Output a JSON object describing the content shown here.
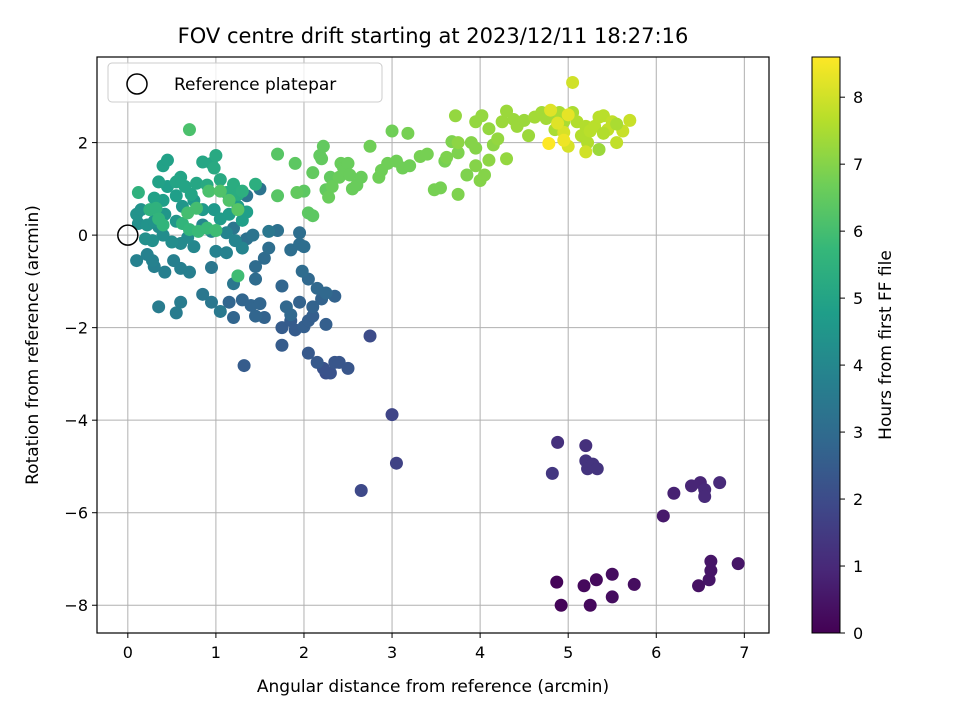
{
  "chart_data": {
    "type": "scatter",
    "title": "FOV centre drift starting at 2023/12/11 18:27:16",
    "xlabel": "Angular distance from reference (arcmin)",
    "ylabel": "Rotation from reference (arcmin)",
    "xlim": [
      -0.35,
      7.28
    ],
    "ylim": [
      -8.6,
      3.85
    ],
    "xticks": [
      0,
      1,
      2,
      3,
      4,
      5,
      6,
      7
    ],
    "yticks": [
      -8,
      -6,
      -4,
      -2,
      0,
      2
    ],
    "grid": true,
    "legend": {
      "placement": "top-left",
      "entries": [
        "Reference platepar"
      ]
    },
    "reference_point": {
      "x": 0,
      "y": 0
    },
    "colorbar": {
      "label": "Hours from first FF file",
      "colormap": "viridis",
      "range": [
        0,
        8.6
      ],
      "ticks": [
        0,
        1,
        2,
        3,
        4,
        5,
        6,
        7,
        8
      ]
    },
    "colors": {
      "viridis_stops": [
        "#440154",
        "#482878",
        "#3e4989",
        "#31688e",
        "#26828e",
        "#1f9e89",
        "#35b779",
        "#6ece58",
        "#b5de2b",
        "#fde725"
      ]
    },
    "points": [
      [
        4.92,
        -8.0,
        0.1
      ],
      [
        5.25,
        -8.0,
        0.2
      ],
      [
        5.5,
        -7.82,
        0.3
      ],
      [
        5.18,
        -7.58,
        0.2
      ],
      [
        5.32,
        -7.45,
        0.2
      ],
      [
        4.87,
        -7.5,
        0.1
      ],
      [
        5.5,
        -7.33,
        0.3
      ],
      [
        5.75,
        -7.55,
        0.3
      ],
      [
        6.48,
        -7.58,
        0.4
      ],
      [
        6.6,
        -7.45,
        0.5
      ],
      [
        6.62,
        -7.25,
        0.5
      ],
      [
        6.62,
        -7.05,
        0.5
      ],
      [
        6.93,
        -7.1,
        0.5
      ],
      [
        6.08,
        -6.07,
        0.6
      ],
      [
        6.2,
        -5.58,
        0.8
      ],
      [
        6.4,
        -5.42,
        0.9
      ],
      [
        6.5,
        -5.35,
        0.9
      ],
      [
        6.55,
        -5.5,
        1.0
      ],
      [
        6.55,
        -5.65,
        1.0
      ],
      [
        6.72,
        -5.35,
        1.0
      ],
      [
        4.88,
        -4.48,
        1.2
      ],
      [
        5.2,
        -4.55,
        1.2
      ],
      [
        5.2,
        -4.88,
        1.3
      ],
      [
        5.22,
        -5.05,
        1.3
      ],
      [
        5.28,
        -4.95,
        1.3
      ],
      [
        5.33,
        -5.05,
        1.3
      ],
      [
        4.82,
        -5.15,
        1.4
      ],
      [
        3.05,
        -4.93,
        1.7
      ],
      [
        3.0,
        -3.88,
        1.8
      ],
      [
        2.65,
        -5.52,
        1.9
      ],
      [
        2.75,
        -2.18,
        2.0
      ],
      [
        2.25,
        -2.98,
        2.1
      ],
      [
        2.22,
        -2.88,
        2.2
      ],
      [
        2.3,
        -2.98,
        2.2
      ],
      [
        2.35,
        -2.75,
        2.3
      ],
      [
        2.4,
        -2.75,
        2.3
      ],
      [
        2.5,
        -2.88,
        2.3
      ],
      [
        2.05,
        -2.55,
        2.4
      ],
      [
        2.15,
        -2.75,
        2.4
      ],
      [
        1.75,
        -2.38,
        2.5
      ],
      [
        1.32,
        -2.82,
        2.5
      ],
      [
        1.75,
        -2.0,
        2.5
      ],
      [
        1.85,
        -1.85,
        2.5
      ],
      [
        1.9,
        -2.05,
        2.5
      ],
      [
        2.0,
        -1.98,
        2.6
      ],
      [
        2.05,
        -1.85,
        2.6
      ],
      [
        2.1,
        -1.75,
        2.6
      ],
      [
        2.25,
        -1.93,
        2.6
      ],
      [
        2.1,
        -1.55,
        2.7
      ],
      [
        2.2,
        -1.38,
        2.7
      ],
      [
        2.35,
        -1.32,
        2.7
      ],
      [
        1.95,
        -1.45,
        2.7
      ],
      [
        1.55,
        -1.78,
        2.7
      ],
      [
        1.45,
        -1.75,
        2.8
      ],
      [
        1.2,
        -1.78,
        2.8
      ],
      [
        1.15,
        -1.45,
        2.8
      ],
      [
        1.3,
        -1.4,
        2.8
      ],
      [
        1.4,
        -1.52,
        2.8
      ],
      [
        1.5,
        -1.48,
        2.8
      ],
      [
        1.75,
        -1.1,
        2.8
      ],
      [
        1.8,
        -1.55,
        2.9
      ],
      [
        1.85,
        -1.72,
        2.9
      ],
      [
        2.05,
        -0.95,
        2.9
      ],
      [
        2.15,
        -1.15,
        2.9
      ],
      [
        2.25,
        -1.25,
        2.9
      ],
      [
        1.98,
        -0.78,
        3.0
      ],
      [
        1.45,
        -0.95,
        3.0
      ],
      [
        1.45,
        -0.68,
        3.0
      ],
      [
        1.55,
        -0.5,
        3.0
      ],
      [
        1.6,
        -0.28,
        3.1
      ],
      [
        1.85,
        -0.32,
        3.1
      ],
      [
        1.95,
        -0.2,
        3.1
      ],
      [
        1.95,
        0.05,
        3.1
      ],
      [
        2.0,
        -0.25,
        3.1
      ],
      [
        1.7,
        0.1,
        3.2
      ],
      [
        1.35,
        -0.08,
        3.2
      ],
      [
        1.42,
        0.0,
        3.3
      ],
      [
        1.35,
        0.85,
        3.3
      ],
      [
        1.5,
        1.0,
        3.3
      ],
      [
        1.6,
        0.08,
        3.4
      ],
      [
        1.2,
        0.15,
        3.4
      ],
      [
        0.95,
        -0.7,
        3.4
      ],
      [
        1.2,
        -1.05,
        3.4
      ],
      [
        0.85,
        -1.28,
        3.4
      ],
      [
        0.95,
        -1.45,
        3.4
      ],
      [
        1.05,
        -1.65,
        3.5
      ],
      [
        0.6,
        -1.45,
        3.6
      ],
      [
        0.55,
        -1.68,
        3.6
      ],
      [
        0.35,
        -1.55,
        3.6
      ],
      [
        0.7,
        -0.8,
        3.7
      ],
      [
        0.6,
        -0.72,
        3.7
      ],
      [
        0.52,
        -0.55,
        3.7
      ],
      [
        0.42,
        -0.8,
        3.7
      ],
      [
        0.3,
        -0.68,
        3.7
      ],
      [
        0.28,
        -0.55,
        3.8
      ],
      [
        0.22,
        -0.42,
        3.8
      ],
      [
        0.1,
        -0.55,
        3.8
      ],
      [
        1.0,
        -0.35,
        3.8
      ],
      [
        1.12,
        -0.38,
        3.8
      ],
      [
        1.22,
        -0.12,
        3.9
      ],
      [
        1.3,
        -0.28,
        3.9
      ],
      [
        1.12,
        0.05,
        3.9
      ],
      [
        0.95,
        0.08,
        4.0
      ],
      [
        0.85,
        0.22,
        4.0
      ],
      [
        0.75,
        -0.25,
        4.0
      ],
      [
        0.68,
        -0.05,
        4.1
      ],
      [
        0.6,
        -0.18,
        4.1
      ],
      [
        0.5,
        -0.15,
        4.2
      ],
      [
        0.4,
        0.0,
        4.2
      ],
      [
        0.35,
        0.18,
        4.2
      ],
      [
        0.28,
        -0.12,
        4.3
      ],
      [
        0.2,
        -0.08,
        4.3
      ],
      [
        0.12,
        0.25,
        4.3
      ],
      [
        0.1,
        0.45,
        4.4
      ],
      [
        0.15,
        0.55,
        4.4
      ],
      [
        0.22,
        0.22,
        4.4
      ],
      [
        0.3,
        0.3,
        4.4
      ],
      [
        0.42,
        0.45,
        4.5
      ],
      [
        0.55,
        0.3,
        4.5
      ],
      [
        0.62,
        0.62,
        4.5
      ],
      [
        0.75,
        0.75,
        4.6
      ],
      [
        0.85,
        0.55,
        4.6
      ],
      [
        0.98,
        0.55,
        4.6
      ],
      [
        1.05,
        0.35,
        4.7
      ],
      [
        1.15,
        0.45,
        4.7
      ],
      [
        1.25,
        0.62,
        4.7
      ],
      [
        1.35,
        0.5,
        4.8
      ],
      [
        1.3,
        0.32,
        4.8
      ],
      [
        0.4,
        0.75,
        4.8
      ],
      [
        0.55,
        0.85,
        4.8
      ],
      [
        0.45,
        1.05,
        4.8
      ],
      [
        0.35,
        1.15,
        4.9
      ],
      [
        0.3,
        0.8,
        4.9
      ],
      [
        0.4,
        1.5,
        4.9
      ],
      [
        0.45,
        1.62,
        4.9
      ],
      [
        0.55,
        1.15,
        5.0
      ],
      [
        0.6,
        1.25,
        5.0
      ],
      [
        0.65,
        1.05,
        5.0
      ],
      [
        0.72,
        0.88,
        5.0
      ],
      [
        0.78,
        1.12,
        5.1
      ],
      [
        0.85,
        1.58,
        5.1
      ],
      [
        0.95,
        1.55,
        5.1
      ],
      [
        1.0,
        1.72,
        5.2
      ],
      [
        0.98,
        1.45,
        5.2
      ],
      [
        1.05,
        1.2,
        5.2
      ],
      [
        0.9,
        1.08,
        5.2
      ],
      [
        1.12,
        0.92,
        5.3
      ],
      [
        1.2,
        1.1,
        5.3
      ],
      [
        1.25,
        0.88,
        5.3
      ],
      [
        1.3,
        0.95,
        5.4
      ],
      [
        1.45,
        1.1,
        5.4
      ],
      [
        0.12,
        0.92,
        5.5
      ],
      [
        0.25,
        0.55,
        5.5
      ],
      [
        0.32,
        0.58,
        5.5
      ],
      [
        0.35,
        0.35,
        5.6
      ],
      [
        0.4,
        0.22,
        5.6
      ],
      [
        0.62,
        0.25,
        5.6
      ],
      [
        0.7,
        0.12,
        5.7
      ],
      [
        0.8,
        0.08,
        5.8
      ],
      [
        0.9,
        0.15,
        5.8
      ],
      [
        1.0,
        0.1,
        5.9
      ],
      [
        1.25,
        -0.88,
        5.9
      ],
      [
        0.68,
        0.48,
        6.0
      ],
      [
        0.78,
        0.58,
        6.0
      ],
      [
        0.7,
        2.28,
        6.1
      ],
      [
        0.92,
        0.95,
        6.1
      ],
      [
        1.05,
        0.95,
        6.2
      ],
      [
        1.15,
        0.75,
        6.2
      ],
      [
        1.25,
        0.55,
        6.3
      ],
      [
        1.7,
        0.85,
        6.3
      ],
      [
        1.7,
        1.75,
        6.3
      ],
      [
        1.9,
        1.55,
        6.4
      ],
      [
        2.0,
        0.95,
        6.4
      ],
      [
        2.05,
        0.48,
        6.4
      ],
      [
        2.1,
        0.42,
        6.4
      ],
      [
        1.92,
        0.92,
        6.5
      ],
      [
        2.1,
        1.35,
        6.5
      ],
      [
        2.18,
        1.72,
        6.5
      ],
      [
        2.2,
        1.65,
        6.5
      ],
      [
        2.22,
        1.92,
        6.5
      ],
      [
        2.3,
        1.25,
        6.5
      ],
      [
        2.25,
        0.98,
        6.5
      ],
      [
        2.28,
        0.82,
        6.6
      ],
      [
        2.32,
        1.05,
        6.6
      ],
      [
        2.4,
        1.25,
        6.6
      ],
      [
        2.42,
        1.55,
        6.6
      ],
      [
        2.45,
        1.45,
        6.6
      ],
      [
        2.5,
        1.55,
        6.6
      ],
      [
        2.52,
        1.3,
        6.6
      ],
      [
        2.55,
        1.0,
        6.6
      ],
      [
        2.6,
        1.08,
        6.6
      ],
      [
        2.65,
        1.25,
        6.6
      ],
      [
        2.75,
        1.92,
        6.7
      ],
      [
        2.85,
        1.25,
        6.7
      ],
      [
        2.88,
        1.4,
        6.7
      ],
      [
        2.95,
        1.55,
        6.7
      ],
      [
        3.0,
        2.25,
        6.7
      ],
      [
        3.05,
        1.6,
        6.7
      ],
      [
        3.12,
        1.45,
        6.7
      ],
      [
        3.2,
        1.5,
        6.7
      ],
      [
        3.18,
        2.2,
        6.8
      ],
      [
        3.32,
        1.7,
        6.8
      ],
      [
        3.4,
        1.75,
        6.8
      ],
      [
        3.48,
        0.98,
        6.8
      ],
      [
        3.55,
        1.02,
        6.8
      ],
      [
        3.6,
        1.6,
        6.8
      ],
      [
        3.62,
        1.68,
        6.9
      ],
      [
        3.68,
        2.02,
        6.9
      ],
      [
        3.75,
        1.78,
        6.9
      ],
      [
        3.75,
        0.88,
        6.9
      ],
      [
        3.85,
        1.3,
        6.9
      ],
      [
        3.95,
        1.5,
        7.0
      ],
      [
        4.0,
        1.18,
        7.0
      ],
      [
        4.05,
        1.3,
        7.0
      ],
      [
        3.95,
        1.88,
        7.0
      ],
      [
        3.9,
        2.0,
        7.0
      ],
      [
        3.75,
        2.0,
        7.1
      ],
      [
        4.1,
        1.62,
        7.1
      ],
      [
        4.15,
        1.95,
        7.1
      ],
      [
        4.3,
        1.65,
        7.2
      ],
      [
        3.72,
        2.58,
        7.2
      ],
      [
        3.95,
        2.45,
        7.2
      ],
      [
        4.02,
        2.58,
        7.2
      ],
      [
        4.1,
        2.3,
        7.2
      ],
      [
        4.2,
        2.08,
        7.2
      ],
      [
        4.25,
        2.45,
        7.3
      ],
      [
        4.3,
        2.68,
        7.3
      ],
      [
        4.38,
        2.5,
        7.3
      ],
      [
        4.42,
        2.35,
        7.3
      ],
      [
        4.5,
        2.48,
        7.3
      ],
      [
        4.55,
        2.15,
        7.3
      ],
      [
        4.62,
        2.55,
        7.4
      ],
      [
        4.7,
        2.65,
        7.4
      ],
      [
        4.75,
        2.52,
        7.4
      ],
      [
        4.82,
        2.6,
        7.4
      ],
      [
        4.85,
        2.28,
        7.5
      ],
      [
        4.9,
        2.65,
        7.5
      ],
      [
        4.95,
        2.45,
        7.5
      ],
      [
        5.05,
        2.65,
        7.5
      ],
      [
        5.1,
        2.45,
        7.6
      ],
      [
        5.15,
        2.15,
        7.6
      ],
      [
        5.2,
        2.35,
        7.6
      ],
      [
        5.22,
        2.0,
        7.6
      ],
      [
        5.25,
        2.25,
        7.7
      ],
      [
        5.3,
        2.35,
        7.7
      ],
      [
        5.35,
        2.55,
        7.7
      ],
      [
        5.4,
        2.58,
        7.7
      ],
      [
        5.45,
        2.28,
        7.8
      ],
      [
        5.5,
        2.45,
        7.8
      ],
      [
        5.55,
        2.0,
        7.8
      ],
      [
        5.62,
        2.25,
        7.9
      ],
      [
        5.7,
        2.48,
        7.9
      ],
      [
        5.05,
        3.3,
        8.0
      ],
      [
        5.2,
        1.8,
        8.0
      ],
      [
        5.0,
        1.92,
        8.1
      ],
      [
        4.95,
        2.22,
        8.1
      ],
      [
        4.88,
        2.42,
        8.2
      ],
      [
        4.8,
        2.7,
        8.2
      ],
      [
        5.0,
        2.6,
        8.3
      ],
      [
        4.95,
        2.05,
        8.4
      ],
      [
        4.78,
        1.98,
        8.6
      ],
      [
        5.35,
        1.85,
        7.3
      ],
      [
        5.4,
        2.2,
        7.6
      ],
      [
        5.55,
        2.4,
        7.5
      ]
    ]
  }
}
